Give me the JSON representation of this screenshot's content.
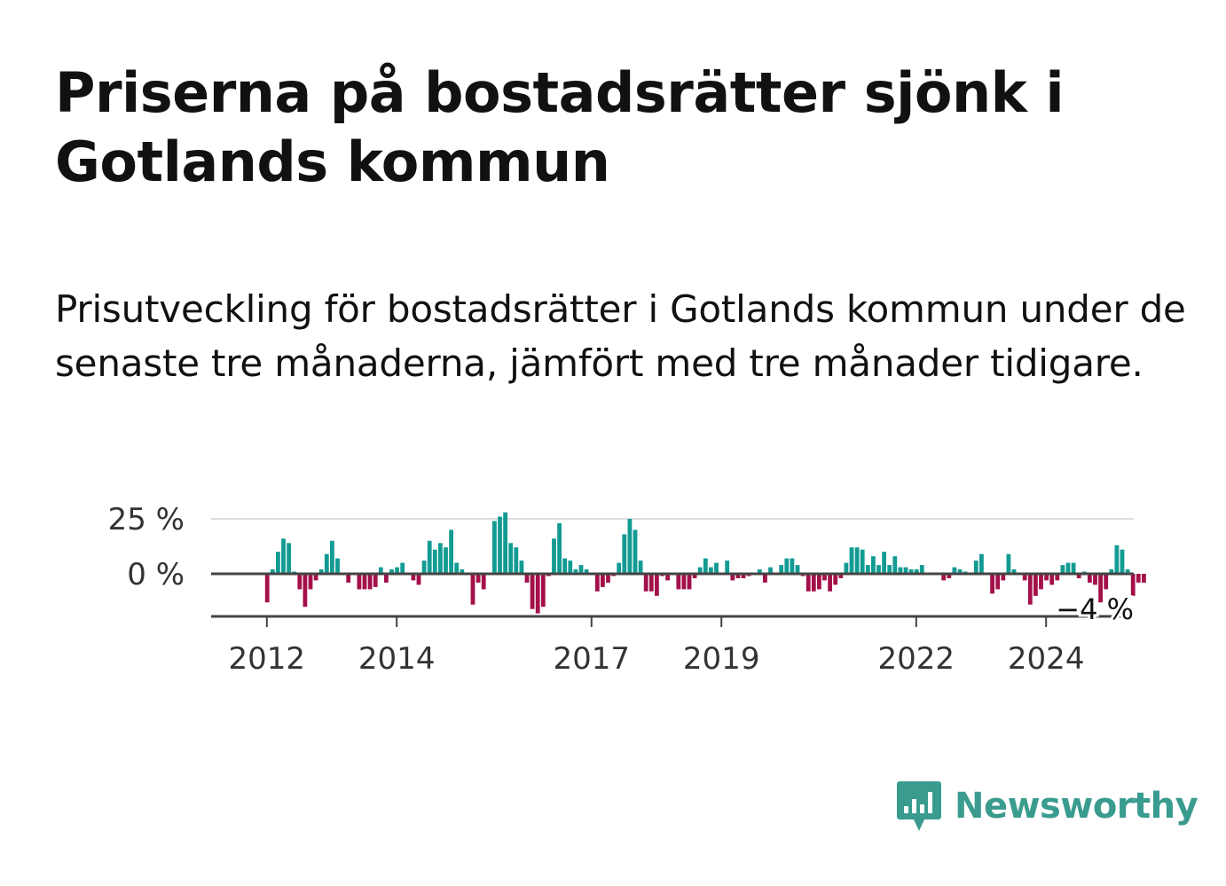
{
  "header": {
    "title": "Priserna på bostadsrätter sjönk i Gotlands kommun",
    "subtitle": "Prisutveckling för bostadsrätter i Gotlands kommun under de senaste tre månaderna, jämfört med tre månader tidigare."
  },
  "chart_data": {
    "type": "bar",
    "y_tick_labels": [
      "25 %",
      "0 %"
    ],
    "y_ticks": [
      25,
      0
    ],
    "ylim": [
      -20,
      28
    ],
    "x_tick_labels": [
      "2012",
      "2014",
      "2017",
      "2019",
      "2022",
      "2024"
    ],
    "x_ticks": [
      "2012-01",
      "2014-01",
      "2017-01",
      "2019-01",
      "2022-01",
      "2024-01"
    ],
    "x_start": "2011-05",
    "end_label": "−4 %",
    "colors": {
      "positive": "#129b93",
      "negative": "#a3104a",
      "zero_line": "#444444",
      "grid": "#dddddd"
    },
    "values": [
      0,
      0,
      0,
      0,
      0,
      0,
      0,
      0,
      -13,
      2,
      10,
      16,
      14,
      1,
      -7,
      -15,
      -7,
      -3,
      2,
      9,
      15,
      7,
      0,
      -4,
      0,
      -7,
      -7,
      -7,
      -6,
      3,
      -4,
      2,
      3,
      5,
      0,
      -3,
      -5,
      6,
      15,
      11,
      14,
      12,
      20,
      5,
      2,
      0,
      -14,
      -4,
      -7,
      0,
      24,
      26,
      28,
      14,
      12,
      6,
      -4,
      -16,
      -18,
      -15,
      -1,
      16,
      23,
      7,
      6,
      2,
      4,
      2,
      0,
      -8,
      -6,
      -4,
      -1,
      5,
      18,
      25,
      20,
      6,
      -8,
      -8,
      -10,
      -1,
      -3,
      0,
      -7,
      -7,
      -7,
      -2,
      3,
      7,
      3,
      5,
      0,
      6,
      -3,
      -2,
      -2,
      -1,
      0,
      2,
      -4,
      3,
      0,
      4,
      7,
      7,
      4,
      -1,
      -8,
      -8,
      -7,
      -3,
      -8,
      -5,
      -2,
      5,
      12,
      12,
      11,
      4,
      8,
      4,
      10,
      4,
      8,
      3,
      3,
      2,
      2,
      4,
      0,
      0,
      0,
      -3,
      -2,
      3,
      2,
      1,
      0,
      6,
      9,
      0,
      -9,
      -7,
      -3,
      9,
      2,
      0,
      -3,
      -14,
      -10,
      -7,
      -3,
      -5,
      -3,
      4,
      5,
      5,
      -2,
      1,
      -4,
      -5,
      -13,
      -7,
      2,
      13,
      11,
      2,
      -10,
      -4,
      -4
    ]
  },
  "logo": {
    "text": "Newsworthy",
    "icon": "chart-speech-bubble-icon",
    "color": "#3a9b8f"
  }
}
